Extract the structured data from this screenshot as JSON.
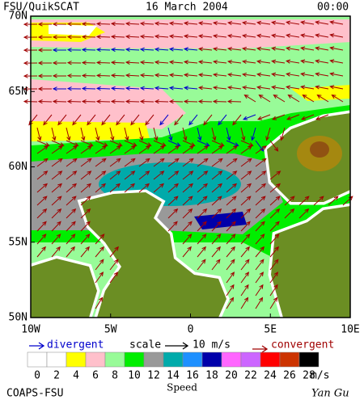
{
  "header": {
    "title": "FSU/QuikSCAT",
    "date": "16 March 2004",
    "time": "00:00"
  },
  "map": {
    "lat_labels": [
      "70N",
      "65N",
      "60N",
      "55N",
      "50N"
    ],
    "lon_labels": [
      "10W",
      "5W",
      "0",
      "5E",
      "10E"
    ]
  },
  "legend": {
    "divergent": "divergent",
    "scale": "scale",
    "scale_value": "10 m/s",
    "convergent": "convergent"
  },
  "colorbar": {
    "ticks": [
      0,
      2,
      4,
      6,
      8,
      10,
      12,
      14,
      16,
      18,
      20,
      22,
      24,
      26,
      28
    ],
    "unit": "m/s",
    "title": "Speed",
    "colors": [
      "#ffffff",
      "#ffffff",
      "#ffff00",
      "#ffc0cb",
      "#98fb98",
      "#00ee00",
      "#999999",
      "#00aaaa",
      "#1e90ff",
      "#0000aa",
      "#ff66ff",
      "#cc66ff",
      "#ff0000",
      "#cc3300",
      "#000000"
    ]
  },
  "footer": {
    "left": "COAPS-FSU",
    "right": "Yan Gu"
  }
}
